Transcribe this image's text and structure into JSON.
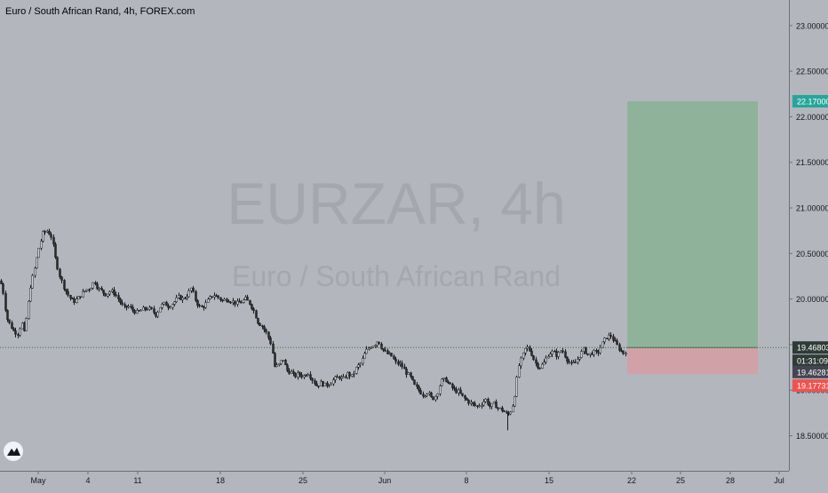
{
  "header": {
    "title": "Euro / South African Rand, 4h, FOREX.com"
  },
  "watermark": {
    "symbol": "EURZAR, 4h",
    "description": "Euro / South African Rand"
  },
  "chart_data": {
    "type": "candlestick",
    "symbol": "EURZAR",
    "interval": "4h",
    "ylim": [
      18.4,
      23.2
    ],
    "y_ticks": [
      "18.50000",
      "19.00000",
      "19.50000",
      "20.00000",
      "20.50000",
      "21.00000",
      "21.50000",
      "22.00000",
      "22.50000",
      "23.00000"
    ],
    "x_ticks": [
      "May",
      "4",
      "11",
      "18",
      "25",
      "Jun",
      "8",
      "15",
      "22",
      "25",
      "28",
      "Jul"
    ],
    "price_path": [
      [
        0,
        20.2
      ],
      [
        3,
        20.1
      ],
      [
        7,
        19.8
      ],
      [
        11,
        19.72
      ],
      [
        15,
        19.65
      ],
      [
        20,
        19.62
      ],
      [
        24,
        19.75
      ],
      [
        27,
        19.62
      ],
      [
        31,
        19.92
      ],
      [
        34,
        20.15
      ],
      [
        39,
        20.35
      ],
      [
        43,
        20.55
      ],
      [
        48,
        20.72
      ],
      [
        53,
        20.75
      ],
      [
        58,
        20.68
      ],
      [
        62,
        20.45
      ],
      [
        67,
        20.25
      ],
      [
        72,
        20.12
      ],
      [
        77,
        20.03
      ],
      [
        82,
        19.97
      ],
      [
        87,
        20.0
      ],
      [
        91,
        20.05
      ],
      [
        96,
        20.1
      ],
      [
        101,
        20.12
      ],
      [
        106,
        20.2
      ],
      [
        110,
        20.12
      ],
      [
        115,
        20.08
      ],
      [
        119,
        20.05
      ],
      [
        124,
        20.09
      ],
      [
        129,
        20.06
      ],
      [
        134,
        19.98
      ],
      [
        139,
        19.9
      ],
      [
        144,
        19.92
      ],
      [
        149,
        19.88
      ],
      [
        154,
        19.85
      ],
      [
        159,
        19.88
      ],
      [
        165,
        19.9
      ],
      [
        170,
        19.88
      ],
      [
        175,
        19.83
      ],
      [
        180,
        19.92
      ],
      [
        185,
        19.95
      ],
      [
        190,
        19.92
      ],
      [
        196,
        19.97
      ],
      [
        201,
        20.02
      ],
      [
        206,
        20.0
      ],
      [
        211,
        20.05
      ],
      [
        215,
        20.12
      ],
      [
        220,
        19.98
      ],
      [
        225,
        19.9
      ],
      [
        230,
        19.93
      ],
      [
        235,
        20.0
      ],
      [
        240,
        20.05
      ],
      [
        245,
        20.02
      ],
      [
        250,
        19.98
      ],
      [
        255,
        20.0
      ],
      [
        260,
        19.98
      ],
      [
        266,
        19.95
      ],
      [
        271,
        19.97
      ],
      [
        276,
        20.0
      ],
      [
        281,
        19.95
      ],
      [
        285,
        19.88
      ],
      [
        290,
        19.75
      ],
      [
        295,
        19.7
      ],
      [
        300,
        19.62
      ],
      [
        305,
        19.5
      ],
      [
        309,
        19.25
      ],
      [
        314,
        19.28
      ],
      [
        318,
        19.35
      ],
      [
        322,
        19.22
      ],
      [
        327,
        19.2
      ],
      [
        331,
        19.15
      ],
      [
        336,
        19.18
      ],
      [
        341,
        19.15
      ],
      [
        346,
        19.2
      ],
      [
        351,
        19.12
      ],
      [
        356,
        19.05
      ],
      [
        361,
        19.08
      ],
      [
        366,
        19.05
      ],
      [
        371,
        19.08
      ],
      [
        376,
        19.12
      ],
      [
        381,
        19.15
      ],
      [
        386,
        19.12
      ],
      [
        391,
        19.18
      ],
      [
        396,
        19.15
      ],
      [
        401,
        19.25
      ],
      [
        406,
        19.3
      ],
      [
        411,
        19.42
      ],
      [
        416,
        19.48
      ],
      [
        421,
        19.5
      ],
      [
        425,
        19.55
      ],
      [
        430,
        19.45
      ],
      [
        435,
        19.4
      ],
      [
        440,
        19.38
      ],
      [
        445,
        19.3
      ],
      [
        451,
        19.28
      ],
      [
        456,
        19.2
      ],
      [
        461,
        19.15
      ],
      [
        466,
        19.05
      ],
      [
        471,
        19.0
      ],
      [
        476,
        18.95
      ],
      [
        481,
        18.98
      ],
      [
        486,
        18.9
      ],
      [
        491,
        18.95
      ],
      [
        496,
        19.1
      ],
      [
        501,
        19.12
      ],
      [
        506,
        19.05
      ],
      [
        511,
        19.0
      ],
      [
        516,
        18.98
      ],
      [
        521,
        18.92
      ],
      [
        526,
        18.88
      ],
      [
        531,
        18.85
      ],
      [
        536,
        18.82
      ],
      [
        541,
        18.85
      ],
      [
        546,
        18.9
      ],
      [
        551,
        18.82
      ],
      [
        556,
        18.85
      ],
      [
        561,
        18.8
      ],
      [
        566,
        18.78
      ],
      [
        571,
        18.72
      ],
      [
        576,
        18.8
      ],
      [
        580,
        19.0
      ],
      [
        583,
        19.25
      ],
      [
        587,
        19.35
      ],
      [
        592,
        19.48
      ],
      [
        597,
        19.42
      ],
      [
        602,
        19.3
      ],
      [
        607,
        19.25
      ],
      [
        612,
        19.3
      ],
      [
        617,
        19.4
      ],
      [
        622,
        19.42
      ],
      [
        627,
        19.38
      ],
      [
        632,
        19.45
      ],
      [
        637,
        19.35
      ],
      [
        642,
        19.28
      ],
      [
        647,
        19.3
      ],
      [
        652,
        19.38
      ],
      [
        657,
        19.45
      ],
      [
        662,
        19.38
      ],
      [
        667,
        19.42
      ],
      [
        672,
        19.4
      ],
      [
        677,
        19.5
      ],
      [
        682,
        19.58
      ],
      [
        687,
        19.6
      ],
      [
        692,
        19.52
      ],
      [
        697,
        19.45
      ],
      [
        702,
        19.4
      ],
      [
        706,
        19.47
      ]
    ],
    "position": {
      "type": "long",
      "take_profit": 22.17,
      "entry": 19.46803,
      "stop_loss": 19.17731
    },
    "current_price": 19.46281,
    "labels": {
      "take_profit": "22.17000",
      "entry": "19.46803",
      "countdown": "01:31:09",
      "current": "19.46281",
      "stop_loss": "19.17731"
    },
    "colors": {
      "background": "#b3b6bd",
      "profit_zone": "#8fb39a",
      "loss_zone": "#d1a1a8",
      "up": "#d1d4dc",
      "down": "#2a2a2a",
      "tp_label": "#26a69a",
      "sl_label": "#ef5350",
      "entry_label": "#2f3b35",
      "current_label": "#434651"
    }
  }
}
